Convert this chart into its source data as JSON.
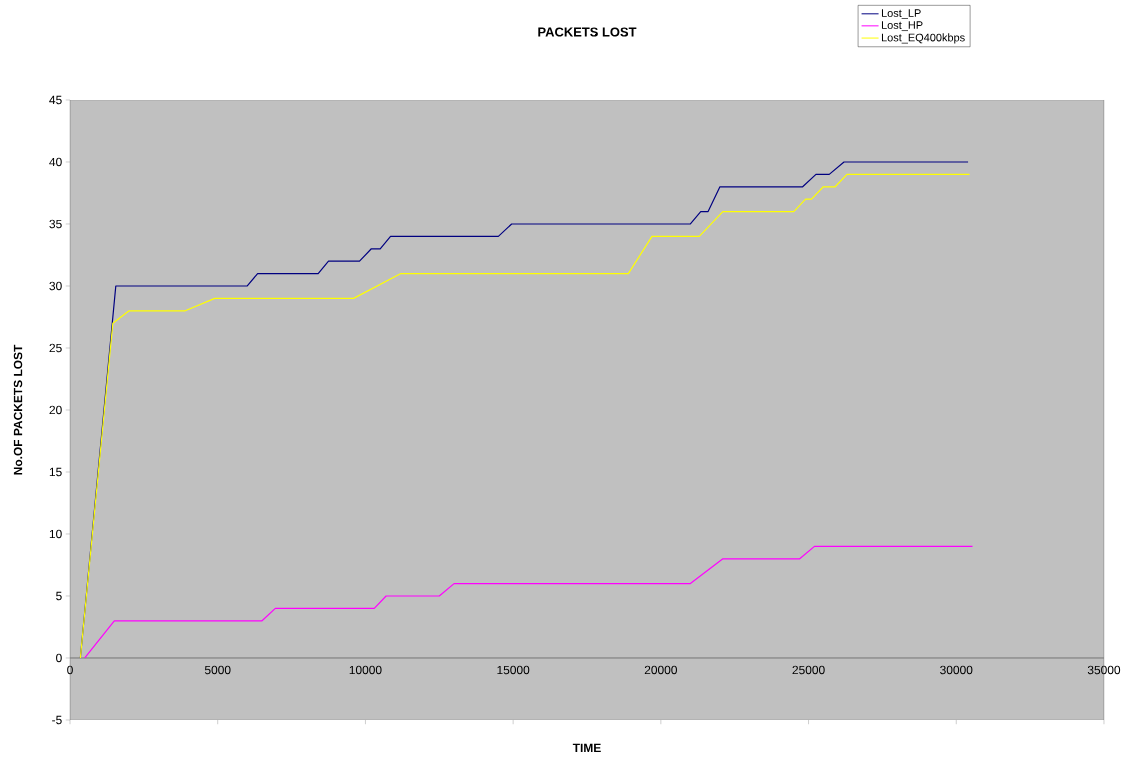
{
  "chart_data": {
    "type": "line",
    "title": "PACKETS LOST",
    "xlabel": "TIME",
    "ylabel": "No.OF PACKETS LOST",
    "xlim": [
      0,
      35000
    ],
    "xticks": [
      0,
      5000,
      10000,
      15000,
      20000,
      25000,
      30000,
      35000
    ],
    "ylim": [
      -5,
      45
    ],
    "yticks": [
      -5,
      0,
      5,
      10,
      15,
      20,
      25,
      30,
      35,
      40,
      45
    ],
    "legend": "top right",
    "marker": "none",
    "grid": false,
    "series": [
      {
        "name": "Lost_LP",
        "color": "#000080",
        "x": [
          350,
          1550,
          6000,
          6350,
          8400,
          8750,
          9800,
          10200,
          10500,
          10850,
          14500,
          14950,
          21000,
          21350,
          21600,
          22000,
          24800,
          25250,
          25700,
          26200,
          30400
        ],
        "values": [
          0,
          30,
          30,
          31,
          31,
          32,
          32,
          33,
          33,
          34,
          34,
          35,
          35,
          36,
          36,
          38,
          38,
          39,
          39,
          40,
          40
        ]
      },
      {
        "name": "Lost_HP",
        "color": "#ff00ff",
        "x": [
          500,
          1500,
          6500,
          6950,
          10300,
          10700,
          12500,
          13000,
          21000,
          22100,
          24700,
          25200,
          30550
        ],
        "values": [
          0,
          3,
          3,
          4,
          4,
          5,
          5,
          6,
          6,
          8,
          8,
          9,
          9
        ]
      },
      {
        "name": "Lost_EQ400kbps",
        "color": "#ffff00",
        "x": [
          350,
          1450,
          2000,
          3900,
          4900,
          9600,
          11200,
          18900,
          19700,
          21300,
          22100,
          24500,
          24900,
          25100,
          25500,
          25900,
          26300,
          30450
        ],
        "values": [
          0,
          27,
          28,
          28,
          29,
          29,
          31,
          31,
          34,
          34,
          36,
          36,
          37,
          37,
          38,
          38,
          39,
          39
        ]
      }
    ]
  }
}
